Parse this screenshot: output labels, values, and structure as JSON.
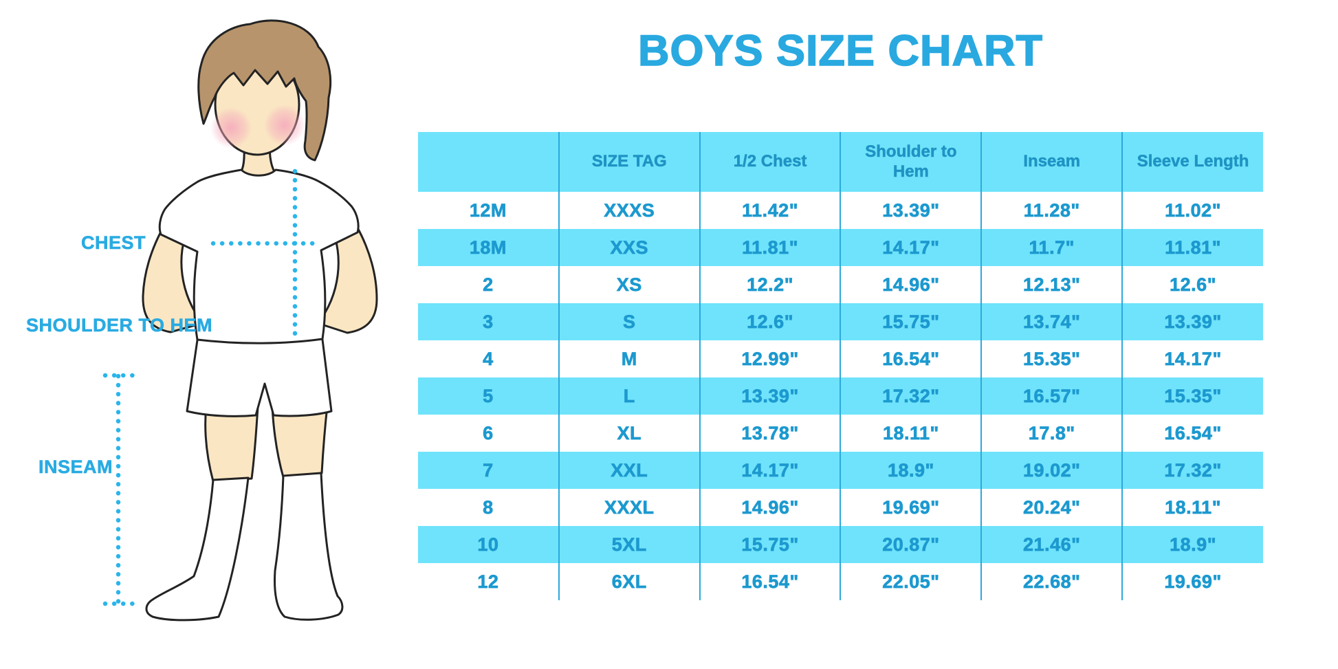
{
  "title": "BOYS SIZE CHART",
  "figure": {
    "chest_label": "CHEST",
    "shoulder_label": "SHOULDER TO HEM",
    "inseam_label": "INSEAM"
  },
  "colors": {
    "title_blue": "#29A9E0",
    "table_fill_cyan": "#6FE3FB",
    "header_text_blue": "#1F93C3",
    "cell_text_blue": "#1C99CF",
    "column_divider_blue": "#2BA9DD",
    "label_blue": "#29ABE2",
    "dotted_line_cyan": "#2BB5EA",
    "skin": "#FAE6C3",
    "hair_brown": "#B7946C",
    "cheek_pink": "#F5A7BC"
  },
  "chart_data": {
    "type": "table",
    "title": "BOYS SIZE CHART",
    "columns": [
      "",
      "SIZE TAG",
      "1/2 Chest",
      "Shoulder to Hem",
      "Inseam",
      "Sleeve Length"
    ],
    "rows": [
      [
        "12M",
        "XXXS",
        "11.42\"",
        "13.39\"",
        "11.28\"",
        "11.02\""
      ],
      [
        "18M",
        "XXS",
        "11.81\"",
        "14.17\"",
        "11.7\"",
        "11.81\""
      ],
      [
        "2",
        "XS",
        "12.2\"",
        "14.96\"",
        "12.13\"",
        "12.6\""
      ],
      [
        "3",
        "S",
        "12.6\"",
        "15.75\"",
        "13.74\"",
        "13.39\""
      ],
      [
        "4",
        "M",
        "12.99\"",
        "16.54\"",
        "15.35\"",
        "14.17\""
      ],
      [
        "5",
        "L",
        "13.39\"",
        "17.32\"",
        "16.57\"",
        "15.35\""
      ],
      [
        "6",
        "XL",
        "13.78\"",
        "18.11\"",
        "17.8\"",
        "16.54\""
      ],
      [
        "7",
        "XXL",
        "14.17\"",
        "18.9\"",
        "19.02\"",
        "17.32\""
      ],
      [
        "8",
        "XXXL",
        "14.96\"",
        "19.69\"",
        "20.24\"",
        "18.11\""
      ],
      [
        "10",
        "5XL",
        "15.75\"",
        "20.87\"",
        "21.46\"",
        "18.9\""
      ],
      [
        "12",
        "6XL",
        "16.54\"",
        "22.05\"",
        "22.68\"",
        "19.69\""
      ]
    ],
    "row_striping": [
      "white",
      "cyan"
    ],
    "grid": "vertical-dividers-only",
    "header_background": "#6FE3FB"
  }
}
